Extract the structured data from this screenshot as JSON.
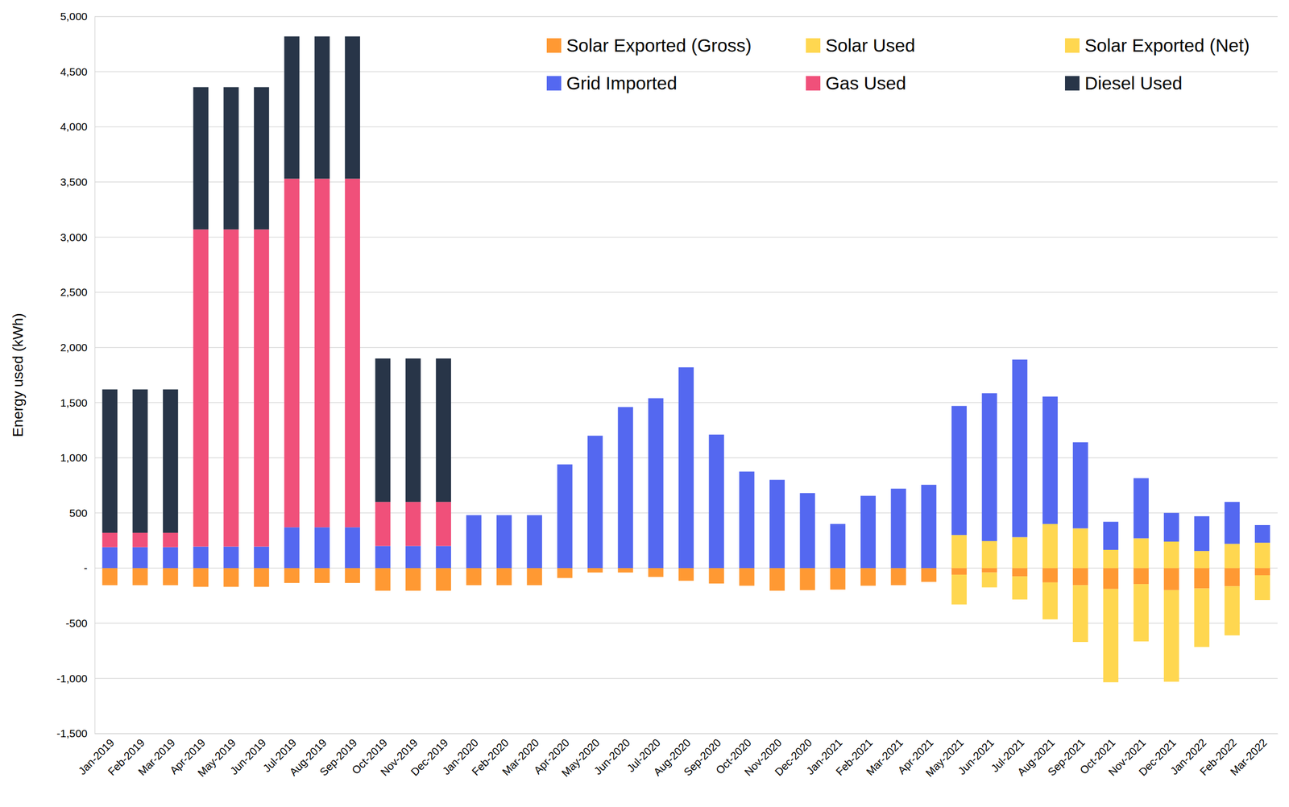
{
  "chart_data": {
    "type": "bar",
    "stacked": true,
    "grid": true,
    "legend": "top-right",
    "y_label": "Energy used (kWh)",
    "ylim": [
      -1500,
      5000
    ],
    "yticks": [
      {
        "value": -1500,
        "label": "-1,500"
      },
      {
        "value": -1000,
        "label": "-1,000"
      },
      -500,
      {
        "value": 0,
        "label": "-"
      },
      500,
      {
        "value": 1000,
        "label": "1,000"
      },
      {
        "value": 1500,
        "label": "1,500"
      },
      {
        "value": 2000,
        "label": "2,000"
      },
      {
        "value": 2500,
        "label": "2,500"
      },
      {
        "value": 3000,
        "label": "3,000"
      },
      {
        "value": 3500,
        "label": "3,500"
      },
      {
        "value": 4000,
        "label": "4,000"
      },
      {
        "value": 4500,
        "label": "4,500"
      },
      {
        "value": 5000,
        "label": "5,000"
      }
    ],
    "categories": [
      "Jan-2019",
      "Feb-2019",
      "Mar-2019",
      "Apr-2019",
      "May-2019",
      "Jun-2019",
      "Jul-2019",
      "Aug-2019",
      "Sep-2019",
      "Oct-2019",
      "Nov-2019",
      "Dec-2019",
      "Jan-2020",
      "Feb-2020",
      "Mar-2020",
      "Apr-2020",
      "May-2020",
      "Jun-2020",
      "Jul-2020",
      "Aug-2020",
      "Sep-2020",
      "Oct-2020",
      "Nov-2020",
      "Dec-2020",
      "Jan-2021",
      "Feb-2021",
      "Mar-2021",
      "Apr-2021",
      "May-2021",
      "Jun-2021",
      "Jul-2021",
      "Aug-2021",
      "Sep-2021",
      "Oct-2021",
      "Nov-2021",
      "Dec-2021",
      "Jan-2022",
      "Feb-2022",
      "Mar-2022"
    ],
    "series": [
      {
        "name": "Solar Exported (Gross)",
        "color": "#ff9933",
        "values": [
          -155,
          -155,
          -155,
          -170,
          -170,
          -170,
          -135,
          -135,
          -135,
          -205,
          -205,
          -205,
          -155,
          -155,
          -155,
          -90,
          -40,
          -40,
          -80,
          -115,
          -140,
          -160,
          -205,
          -200,
          -195,
          -160,
          -155,
          -125,
          -60,
          -40,
          -75,
          -130,
          -155,
          -190,
          -145,
          -200,
          -185,
          -165,
          -65
        ]
      },
      {
        "name": "Solar Used",
        "color": "#ffd750",
        "values": [
          null,
          null,
          null,
          null,
          null,
          null,
          null,
          null,
          null,
          null,
          null,
          null,
          null,
          null,
          null,
          null,
          null,
          null,
          null,
          null,
          null,
          null,
          null,
          null,
          null,
          null,
          null,
          null,
          300,
          245,
          280,
          400,
          360,
          165,
          270,
          240,
          155,
          220,
          230
        ]
      },
      {
        "name": "Solar Exported (Net)",
        "color": "#ffd750",
        "values": [
          null,
          null,
          null,
          null,
          null,
          null,
          null,
          null,
          null,
          null,
          null,
          null,
          null,
          null,
          null,
          null,
          null,
          null,
          null,
          null,
          null,
          null,
          null,
          null,
          null,
          null,
          null,
          null,
          -270,
          -135,
          -210,
          -335,
          -515,
          -845,
          -520,
          -830,
          -530,
          -445,
          -225
        ]
      },
      {
        "name": "Grid Imported",
        "color": "#5468f0",
        "values": [
          190,
          190,
          190,
          195,
          195,
          195,
          370,
          370,
          370,
          200,
          200,
          200,
          480,
          480,
          480,
          940,
          1200,
          1460,
          1540,
          1820,
          1210,
          875,
          800,
          680,
          400,
          655,
          720,
          755,
          1170,
          1340,
          1610,
          1155,
          780,
          255,
          545,
          260,
          315,
          380,
          160
        ]
      },
      {
        "name": "Gas Used",
        "color": "#f0507a",
        "values": [
          130,
          130,
          130,
          2875,
          2875,
          2875,
          3160,
          3160,
          3160,
          400,
          400,
          400,
          null,
          null,
          null,
          null,
          null,
          null,
          null,
          null,
          null,
          null,
          null,
          null,
          null,
          null,
          null,
          null,
          null,
          null,
          null,
          null,
          null,
          null,
          null,
          null,
          null,
          null,
          null
        ]
      },
      {
        "name": "Diesel Used",
        "color": "#283548",
        "values": [
          1300,
          1300,
          1300,
          1290,
          1290,
          1290,
          1290,
          1290,
          1290,
          1300,
          1300,
          1300,
          null,
          null,
          null,
          null,
          null,
          null,
          null,
          null,
          null,
          null,
          null,
          null,
          null,
          null,
          null,
          null,
          null,
          null,
          null,
          null,
          null,
          null,
          null,
          null,
          null,
          null,
          null
        ]
      }
    ]
  }
}
